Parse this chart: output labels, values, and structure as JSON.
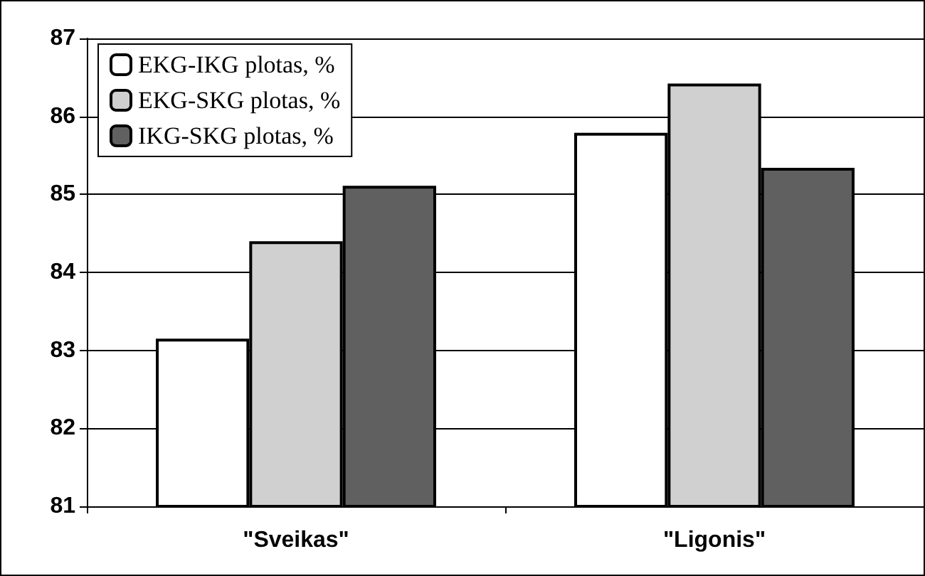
{
  "chart_data": {
    "type": "bar",
    "categories": [
      "\"Sveikas\"",
      "\"Ligonis\""
    ],
    "series": [
      {
        "name": "EKG-IKG plotas, %",
        "color": "#ffffff",
        "values": [
          83.15,
          85.79
        ]
      },
      {
        "name": "EKG-SKG plotas, %",
        "color": "#d0d0d0",
        "values": [
          84.4,
          86.42
        ]
      },
      {
        "name": "IKG-SKG plotas, %",
        "color": "#606060",
        "values": [
          85.11,
          85.34
        ]
      }
    ],
    "ylim": [
      81,
      87
    ],
    "yticks": [
      81,
      82,
      83,
      84,
      85,
      86,
      87
    ],
    "grid": "y",
    "legend": "top left"
  }
}
